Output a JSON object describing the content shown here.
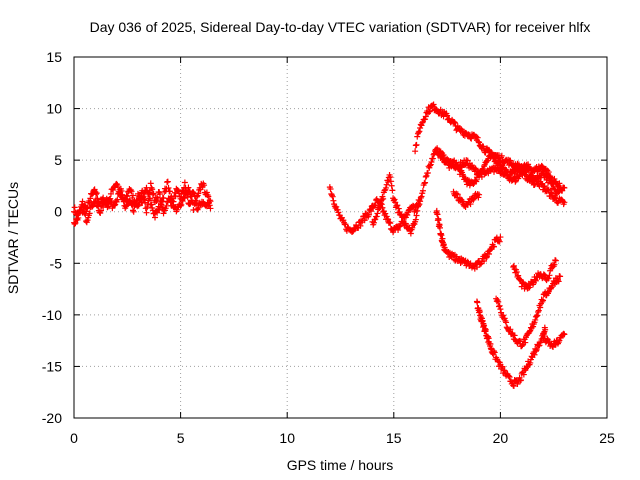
{
  "chart_data": {
    "type": "scatter",
    "title": "Day 036 of 2025, Sidereal Day-to-day VTEC variation (SDTVAR) for receiver hlfx",
    "xlabel": "GPS time / hours",
    "ylabel": "SDTVAR / TECUs",
    "xlim": [
      0,
      25
    ],
    "ylim": [
      -20,
      15
    ],
    "xticks": [
      0,
      5,
      10,
      15,
      20,
      25
    ],
    "yticks": [
      -20,
      -15,
      -10,
      -5,
      0,
      5,
      10,
      15
    ],
    "grid": true,
    "marker": "+",
    "color": "#ff0000",
    "series": [
      {
        "values": [
          [
            0.0,
            0.3
          ],
          [
            0.2,
            -0.5
          ],
          [
            0.4,
            0.8
          ],
          [
            0.6,
            0.2
          ],
          [
            0.8,
            1.5
          ],
          [
            1.0,
            2.0
          ],
          [
            1.2,
            0.8
          ],
          [
            1.4,
            1.2
          ],
          [
            1.6,
            0.5
          ],
          [
            1.8,
            2.2
          ],
          [
            2.0,
            2.8
          ],
          [
            2.2,
            1.4
          ],
          [
            2.4,
            1.0
          ],
          [
            2.6,
            2.3
          ],
          [
            2.8,
            1.2
          ],
          [
            3.0,
            0.6
          ],
          [
            3.2,
            1.8
          ],
          [
            3.4,
            0.2
          ],
          [
            3.6,
            2.6
          ],
          [
            3.8,
            1.0
          ],
          [
            4.0,
            1.8
          ],
          [
            4.2,
            -0.2
          ],
          [
            4.4,
            1.2
          ],
          [
            4.6,
            0.8
          ],
          [
            4.8,
            2.0
          ],
          [
            5.0,
            1.4
          ],
          [
            5.2,
            2.6
          ],
          [
            5.4,
            0.6
          ],
          [
            5.6,
            1.8
          ],
          [
            5.8,
            0.2
          ],
          [
            6.0,
            1.0
          ],
          [
            6.2,
            0.5
          ],
          [
            6.4,
            1.2
          ]
        ]
      },
      {
        "values": [
          [
            0.0,
            -1.2
          ],
          [
            0.2,
            -0.4
          ],
          [
            0.4,
            0.2
          ],
          [
            0.6,
            -0.8
          ],
          [
            0.8,
            0.6
          ],
          [
            1.0,
            1.0
          ],
          [
            1.2,
            0.0
          ],
          [
            1.4,
            0.8
          ],
          [
            1.6,
            1.4
          ],
          [
            1.8,
            0.6
          ],
          [
            2.0,
            1.2
          ],
          [
            2.2,
            2.0
          ],
          [
            2.4,
            0.4
          ],
          [
            2.6,
            1.0
          ],
          [
            2.8,
            0.0
          ],
          [
            3.0,
            1.5
          ],
          [
            3.2,
            1.0
          ],
          [
            3.4,
            2.2
          ],
          [
            3.6,
            0.8
          ],
          [
            3.8,
            -0.4
          ],
          [
            4.0,
            0.4
          ],
          [
            4.2,
            1.6
          ],
          [
            4.4,
            2.8
          ],
          [
            4.6,
            1.0
          ],
          [
            4.8,
            0.0
          ],
          [
            5.0,
            0.8
          ],
          [
            5.2,
            1.6
          ],
          [
            5.4,
            2.2
          ],
          [
            5.6,
            0.4
          ],
          [
            5.8,
            1.4
          ],
          [
            6.0,
            2.8
          ],
          [
            6.2,
            1.8
          ],
          [
            6.4,
            0.6
          ]
        ]
      },
      {
        "values": [
          [
            12.0,
            2.4
          ],
          [
            12.2,
            1.0
          ],
          [
            12.4,
            -0.2
          ],
          [
            12.6,
            -1.0
          ],
          [
            12.8,
            -1.6
          ],
          [
            13.0,
            -1.8
          ],
          [
            13.2,
            -1.4
          ],
          [
            13.4,
            -1.2
          ],
          [
            13.6,
            -0.6
          ],
          [
            13.8,
            -0.2
          ],
          [
            14.0,
            0.4
          ],
          [
            14.2,
            1.0
          ],
          [
            14.4,
            0.6
          ],
          [
            14.6,
            -0.4
          ],
          [
            14.8,
            -1.2
          ],
          [
            15.0,
            -1.8
          ],
          [
            15.2,
            -1.6
          ],
          [
            15.4,
            -1.0
          ],
          [
            15.6,
            -1.4
          ],
          [
            15.8,
            -2.0
          ],
          [
            16.0,
            -0.8
          ],
          [
            16.2,
            0.8
          ],
          [
            16.4,
            2.6
          ],
          [
            16.6,
            4.0
          ],
          [
            16.8,
            5.2
          ],
          [
            17.0,
            6.0
          ],
          [
            17.2,
            5.6
          ],
          [
            17.4,
            5.0
          ],
          [
            17.6,
            4.4
          ],
          [
            17.8,
            4.8
          ],
          [
            18.0,
            4.2
          ],
          [
            18.2,
            3.6
          ],
          [
            18.4,
            3.0
          ],
          [
            18.6,
            2.6
          ],
          [
            18.8,
            3.0
          ],
          [
            19.0,
            3.6
          ],
          [
            19.2,
            4.4
          ],
          [
            19.4,
            5.0
          ],
          [
            19.6,
            5.4
          ],
          [
            19.8,
            5.0
          ],
          [
            20.0,
            4.6
          ],
          [
            20.2,
            4.0
          ],
          [
            20.4,
            3.4
          ],
          [
            20.6,
            3.0
          ],
          [
            20.8,
            3.4
          ],
          [
            21.0,
            3.8
          ],
          [
            21.2,
            3.4
          ],
          [
            21.4,
            3.0
          ],
          [
            21.6,
            2.8
          ],
          [
            21.8,
            3.4
          ],
          [
            22.0,
            3.8
          ],
          [
            22.2,
            3.2
          ],
          [
            22.4,
            2.6
          ],
          [
            22.6,
            2.0
          ],
          [
            22.8,
            2.2
          ],
          [
            23.0,
            2.2
          ]
        ]
      },
      {
        "values": [
          [
            14.0,
            -1.2
          ],
          [
            14.2,
            -0.4
          ],
          [
            14.4,
            0.8
          ],
          [
            14.6,
            2.0
          ],
          [
            14.8,
            3.6
          ],
          [
            15.0,
            1.2
          ],
          [
            15.2,
            0.2
          ],
          [
            15.4,
            -0.8
          ],
          [
            15.6,
            -0.2
          ],
          [
            15.8,
            0.6
          ],
          [
            16.0,
            0.2
          ],
          [
            16.2,
            1.4
          ]
        ]
      },
      {
        "values": [
          [
            16.0,
            6.0
          ],
          [
            16.2,
            8.0
          ],
          [
            16.4,
            9.0
          ],
          [
            16.6,
            9.8
          ],
          [
            16.8,
            10.2
          ],
          [
            17.0,
            10.0
          ],
          [
            17.2,
            9.6
          ],
          [
            17.4,
            9.4
          ],
          [
            17.6,
            9.0
          ],
          [
            17.8,
            8.6
          ],
          [
            18.0,
            8.0
          ],
          [
            18.2,
            7.8
          ],
          [
            18.4,
            7.6
          ],
          [
            18.6,
            7.4
          ],
          [
            18.8,
            7.2
          ],
          [
            19.0,
            6.8
          ],
          [
            19.2,
            6.2
          ],
          [
            19.4,
            5.8
          ],
          [
            19.6,
            5.6
          ],
          [
            19.8,
            5.4
          ],
          [
            20.0,
            5.2
          ],
          [
            20.2,
            5.0
          ],
          [
            20.4,
            4.8
          ],
          [
            20.6,
            4.6
          ],
          [
            20.8,
            4.4
          ],
          [
            21.0,
            4.2
          ],
          [
            21.2,
            4.0
          ],
          [
            21.4,
            3.6
          ],
          [
            21.6,
            3.2
          ],
          [
            21.8,
            2.8
          ],
          [
            22.0,
            2.4
          ],
          [
            22.2,
            2.0
          ],
          [
            22.4,
            1.6
          ],
          [
            22.6,
            1.2
          ],
          [
            22.8,
            1.0
          ],
          [
            23.0,
            0.8
          ]
        ]
      },
      {
        "values": [
          [
            17.0,
            5.6
          ],
          [
            17.2,
            5.4
          ],
          [
            17.4,
            5.0
          ],
          [
            17.6,
            4.8
          ],
          [
            17.8,
            4.6
          ],
          [
            18.0,
            4.4
          ],
          [
            18.2,
            4.6
          ],
          [
            18.4,
            4.8
          ],
          [
            18.6,
            4.4
          ],
          [
            18.8,
            4.0
          ],
          [
            19.0,
            3.8
          ],
          [
            19.2,
            3.6
          ],
          [
            19.4,
            3.8
          ],
          [
            19.6,
            4.0
          ],
          [
            19.8,
            4.2
          ],
          [
            20.0,
            4.0
          ],
          [
            20.2,
            3.8
          ],
          [
            20.4,
            3.6
          ],
          [
            20.6,
            3.8
          ],
          [
            20.8,
            4.0
          ],
          [
            21.0,
            4.2
          ],
          [
            21.2,
            4.4
          ],
          [
            21.4,
            4.2
          ],
          [
            21.6,
            4.0
          ],
          [
            21.8,
            4.2
          ],
          [
            22.0,
            4.4
          ],
          [
            22.2,
            3.8
          ],
          [
            22.4,
            3.2
          ],
          [
            22.6,
            2.8
          ],
          [
            22.8,
            2.4
          ]
        ]
      },
      {
        "values": [
          [
            17.8,
            2.0
          ],
          [
            18.0,
            1.4
          ],
          [
            18.2,
            0.8
          ],
          [
            18.4,
            0.6
          ],
          [
            18.6,
            1.0
          ],
          [
            18.8,
            1.4
          ],
          [
            19.0,
            1.6
          ]
        ]
      },
      {
        "values": [
          [
            17.0,
            0.0
          ],
          [
            17.1,
            -1.0
          ],
          [
            17.2,
            -2.0
          ],
          [
            17.3,
            -3.0
          ],
          [
            17.4,
            -3.6
          ],
          [
            17.6,
            -4.2
          ],
          [
            17.8,
            -4.4
          ],
          [
            18.0,
            -4.6
          ],
          [
            18.2,
            -4.8
          ],
          [
            18.4,
            -5.0
          ],
          [
            18.6,
            -5.2
          ],
          [
            18.8,
            -5.4
          ],
          [
            19.0,
            -5.0
          ],
          [
            19.2,
            -4.6
          ],
          [
            19.4,
            -4.0
          ],
          [
            19.6,
            -3.4
          ],
          [
            19.8,
            -2.8
          ],
          [
            20.0,
            -2.6
          ]
        ]
      },
      {
        "values": [
          [
            18.9,
            -9.0
          ],
          [
            19.0,
            -9.6
          ],
          [
            19.1,
            -10.4
          ],
          [
            19.2,
            -11.0
          ],
          [
            19.3,
            -11.6
          ],
          [
            19.4,
            -12.2
          ],
          [
            19.5,
            -12.8
          ],
          [
            19.6,
            -13.4
          ],
          [
            19.8,
            -14.2
          ],
          [
            20.0,
            -15.0
          ],
          [
            20.2,
            -15.6
          ],
          [
            20.4,
            -16.2
          ],
          [
            20.6,
            -16.6
          ],
          [
            20.8,
            -16.6
          ],
          [
            21.0,
            -16.0
          ],
          [
            21.2,
            -15.2
          ],
          [
            21.4,
            -14.4
          ],
          [
            21.6,
            -13.6
          ],
          [
            21.8,
            -12.8
          ],
          [
            22.0,
            -12.0
          ],
          [
            22.1,
            -11.2
          ]
        ]
      },
      {
        "values": [
          [
            19.8,
            -8.2
          ],
          [
            20.0,
            -9.4
          ],
          [
            20.2,
            -10.6
          ],
          [
            20.4,
            -11.4
          ],
          [
            20.6,
            -12.0
          ],
          [
            20.8,
            -12.6
          ],
          [
            21.0,
            -12.8
          ],
          [
            21.2,
            -12.4
          ],
          [
            21.4,
            -11.6
          ],
          [
            21.6,
            -10.6
          ],
          [
            21.8,
            -9.4
          ],
          [
            22.0,
            -8.4
          ],
          [
            22.2,
            -7.8
          ],
          [
            22.4,
            -7.2
          ],
          [
            22.6,
            -6.6
          ],
          [
            22.8,
            -6.4
          ]
        ]
      },
      {
        "values": [
          [
            20.6,
            -5.2
          ],
          [
            20.8,
            -6.2
          ],
          [
            21.0,
            -7.0
          ],
          [
            21.2,
            -7.4
          ],
          [
            21.4,
            -7.2
          ],
          [
            21.6,
            -6.6
          ],
          [
            21.8,
            -6.0
          ],
          [
            22.0,
            -6.2
          ],
          [
            22.2,
            -6.6
          ],
          [
            22.4,
            -5.4
          ],
          [
            22.6,
            -4.8
          ]
        ]
      },
      {
        "values": [
          [
            22.0,
            -12.2
          ],
          [
            22.2,
            -12.6
          ],
          [
            22.4,
            -13.0
          ],
          [
            22.6,
            -12.8
          ],
          [
            22.8,
            -12.4
          ],
          [
            23.0,
            -11.8
          ]
        ]
      }
    ]
  }
}
